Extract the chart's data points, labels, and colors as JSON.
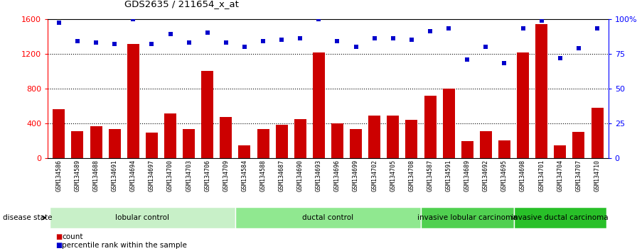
{
  "title": "GDS2635 / 211654_x_at",
  "samples": [
    "GSM134586",
    "GSM134589",
    "GSM134688",
    "GSM134691",
    "GSM134694",
    "GSM134697",
    "GSM134700",
    "GSM134703",
    "GSM134706",
    "GSM134709",
    "GSM134584",
    "GSM134588",
    "GSM134687",
    "GSM134690",
    "GSM134693",
    "GSM134696",
    "GSM134699",
    "GSM134702",
    "GSM134705",
    "GSM134708",
    "GSM134587",
    "GSM134591",
    "GSM134689",
    "GSM134692",
    "GSM134695",
    "GSM134698",
    "GSM134701",
    "GSM134704",
    "GSM134707",
    "GSM134710"
  ],
  "counts": [
    560,
    310,
    370,
    330,
    1310,
    290,
    510,
    330,
    1000,
    470,
    150,
    330,
    380,
    450,
    1210,
    400,
    330,
    490,
    490,
    440,
    720,
    800,
    195,
    310,
    200,
    1210,
    1540,
    145,
    300,
    580
  ],
  "percentiles": [
    97,
    84,
    83,
    82,
    100,
    82,
    89,
    83,
    90,
    83,
    80,
    84,
    85,
    86,
    100,
    84,
    80,
    86,
    86,
    85,
    91,
    93,
    71,
    80,
    68,
    93,
    99,
    72,
    79,
    93
  ],
  "groups": [
    {
      "label": "lobular control",
      "start": 0,
      "end": 9,
      "color": "#c8f0c8"
    },
    {
      "label": "ductal control",
      "start": 10,
      "end": 19,
      "color": "#90e890"
    },
    {
      "label": "invasive lobular carcinoma",
      "start": 20,
      "end": 24,
      "color": "#50d050"
    },
    {
      "label": "invasive ductal carcinoma",
      "start": 25,
      "end": 29,
      "color": "#28c028"
    }
  ],
  "bar_color": "#cc0000",
  "dot_color": "#0000cc",
  "ylim_left": [
    0,
    1600
  ],
  "ylim_right": [
    0,
    100
  ],
  "yticks_left": [
    0,
    400,
    800,
    1200,
    1600
  ],
  "yticks_right": [
    0,
    25,
    50,
    75,
    100
  ],
  "bg_color": "#ffffff",
  "plot_bg_color": "#ffffff",
  "xtick_bg_color": "#d4d4d4",
  "legend_count_label": "count",
  "legend_pct_label": "percentile rank within the sample",
  "disease_state_label": "disease state"
}
